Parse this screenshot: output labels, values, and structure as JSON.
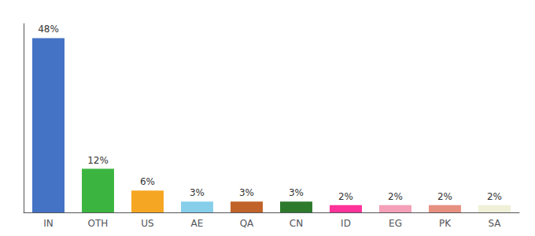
{
  "chart_data": {
    "type": "bar",
    "categories": [
      "IN",
      "OTH",
      "US",
      "AE",
      "QA",
      "CN",
      "ID",
      "EG",
      "PK",
      "SA"
    ],
    "values": [
      48,
      12,
      6,
      3,
      3,
      3,
      2,
      2,
      2,
      2
    ],
    "value_labels": [
      "48%",
      "12%",
      "6%",
      "3%",
      "3%",
      "3%",
      "2%",
      "2%",
      "2%",
      "2%"
    ],
    "colors": [
      "#4472c4",
      "#3cb540",
      "#f5a623",
      "#87ceeb",
      "#c0622a",
      "#2d7a2d",
      "#ff3399",
      "#f4a0b8",
      "#e89080",
      "#f0f0d8"
    ],
    "ylim": [
      0,
      52
    ],
    "grid": false,
    "data_labels": true,
    "tick_labels": "x"
  }
}
